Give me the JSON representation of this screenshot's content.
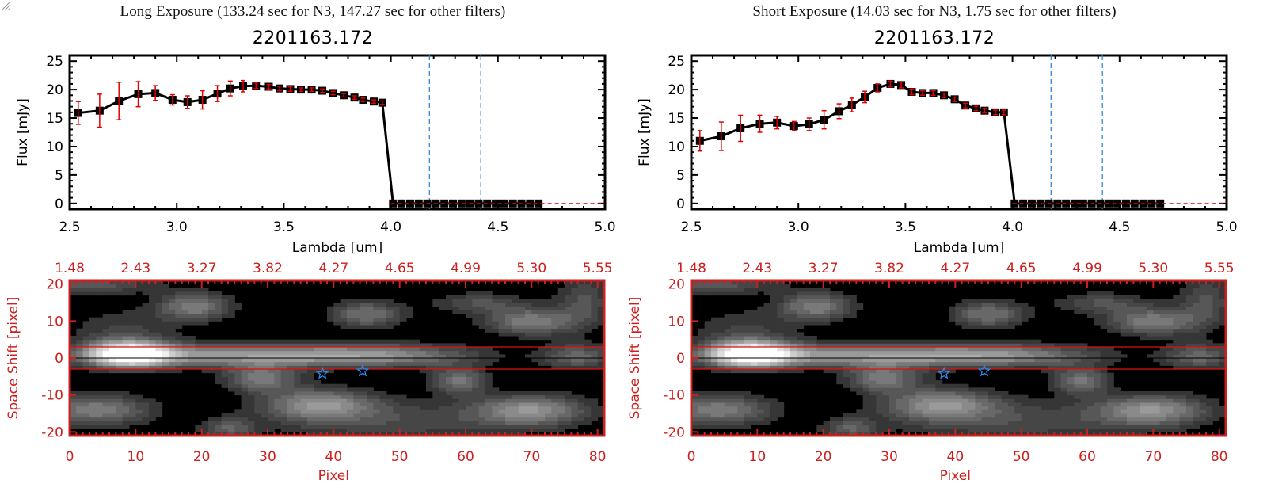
{
  "window": {
    "resize_grip_icon": "resize-grip-icon"
  },
  "chart_data": [
    {
      "id": "long-spectrum",
      "type": "line",
      "title": "Long Exposure (133.24 sec for N3, 147.27 sec for other filters)",
      "subtitle": "2201163.172",
      "xlabel": "Lambda [um]",
      "ylabel": "Flux [mJy]",
      "xlim": [
        2.5,
        5.0
      ],
      "ylim": [
        -1,
        26
      ],
      "xticks": [
        "2.5",
        "3.0",
        "3.5",
        "4.0",
        "4.5",
        "5.0"
      ],
      "xtick_values": [
        2.5,
        3.0,
        3.5,
        4.0,
        4.5,
        5.0
      ],
      "yticks": [
        "0",
        "5",
        "10",
        "15",
        "20",
        "25"
      ],
      "ytick_values": [
        0,
        5,
        10,
        15,
        20,
        25
      ],
      "vlines": [
        4.18,
        4.42
      ],
      "vline_color": "#1f7fe0",
      "hline_zero_color": "#e00000",
      "line_color": "#000000",
      "errorbar_color": "#e00000",
      "x": [
        2.54,
        2.64,
        2.73,
        2.82,
        2.9,
        2.98,
        3.05,
        3.12,
        3.19,
        3.25,
        3.31,
        3.37,
        3.43,
        3.48,
        3.53,
        3.58,
        3.63,
        3.68,
        3.73,
        3.78,
        3.83,
        3.87,
        3.92,
        3.96,
        4.01,
        4.05,
        4.09,
        4.13,
        4.17,
        4.21,
        4.25,
        4.29,
        4.33,
        4.37,
        4.41,
        4.45,
        4.49,
        4.53,
        4.57,
        4.61,
        4.65,
        4.69
      ],
      "y": [
        15.9,
        16.3,
        18.0,
        19.2,
        19.4,
        18.2,
        17.8,
        18.2,
        19.3,
        20.2,
        20.6,
        20.7,
        20.5,
        20.2,
        20.1,
        20.0,
        20.0,
        19.8,
        19.4,
        19.0,
        18.6,
        18.2,
        17.9,
        17.7,
        0,
        0,
        0,
        0,
        0,
        0,
        0,
        0,
        0,
        0,
        0,
        0,
        0,
        0,
        0,
        0,
        0,
        0
      ],
      "yerr": [
        2.0,
        2.9,
        3.3,
        2.2,
        1.3,
        0.9,
        1.1,
        1.6,
        1.4,
        1.3,
        1.0,
        0.5,
        0.4,
        0.4,
        0.4,
        0.3,
        0.3,
        0.3,
        0.3,
        0.3,
        0.3,
        0.3,
        0.3,
        0.3,
        0,
        0,
        0,
        0,
        0,
        0,
        0,
        0,
        0,
        0,
        0,
        0,
        0,
        0,
        0,
        0,
        0,
        0
      ]
    },
    {
      "id": "short-spectrum",
      "type": "line",
      "title": "Short Exposure (14.03 sec for N3, 1.75 sec for other filters)",
      "subtitle": "2201163.172",
      "xlabel": "Lambda [um]",
      "ylabel": "Flux [mJy]",
      "xlim": [
        2.5,
        5.0
      ],
      "ylim": [
        -1,
        26
      ],
      "xticks": [
        "2.5",
        "3.0",
        "3.5",
        "4.0",
        "4.5",
        "5.0"
      ],
      "xtick_values": [
        2.5,
        3.0,
        3.5,
        4.0,
        4.5,
        5.0
      ],
      "yticks": [
        "0",
        "5",
        "10",
        "15",
        "20",
        "25"
      ],
      "ytick_values": [
        0,
        5,
        10,
        15,
        20,
        25
      ],
      "vlines": [
        4.18,
        4.42
      ],
      "vline_color": "#1f7fe0",
      "hline_zero_color": "#e00000",
      "line_color": "#000000",
      "errorbar_color": "#e00000",
      "x": [
        2.54,
        2.64,
        2.73,
        2.82,
        2.9,
        2.98,
        3.05,
        3.12,
        3.19,
        3.25,
        3.31,
        3.37,
        3.43,
        3.48,
        3.53,
        3.58,
        3.63,
        3.68,
        3.73,
        3.78,
        3.83,
        3.87,
        3.92,
        3.96,
        4.01,
        4.05,
        4.09,
        4.13,
        4.17,
        4.21,
        4.25,
        4.29,
        4.33,
        4.37,
        4.41,
        4.45,
        4.49,
        4.53,
        4.57,
        4.61,
        4.65,
        4.69
      ],
      "y": [
        11.0,
        11.8,
        13.2,
        14.0,
        14.2,
        13.6,
        13.9,
        14.7,
        16.2,
        17.3,
        18.7,
        20.3,
        21.0,
        20.8,
        19.6,
        19.4,
        19.4,
        19.0,
        18.3,
        17.2,
        16.7,
        16.3,
        16.0,
        16.0,
        0,
        0,
        0,
        0,
        0,
        0,
        0,
        0,
        0,
        0,
        0,
        0,
        0,
        0,
        0,
        0,
        0,
        0
      ],
      "yerr": [
        1.8,
        2.5,
        2.3,
        1.5,
        1.1,
        0.8,
        1.1,
        1.6,
        1.3,
        1.2,
        1.0,
        0.7,
        0.5,
        0.5,
        0.5,
        0.4,
        0.4,
        0.4,
        0.4,
        0.4,
        0.4,
        0.4,
        0.4,
        0.4,
        0,
        0,
        0,
        0,
        0,
        0,
        0,
        0,
        0,
        0,
        0,
        0,
        0,
        0,
        0,
        0,
        0,
        0
      ]
    },
    {
      "id": "long-image",
      "type": "heatmap",
      "xlabel": "Pixel",
      "ylabel": "Space Shift [pixel]",
      "xlim": [
        0,
        81
      ],
      "ylim": [
        -21,
        21
      ],
      "xticks": [
        "0",
        "10",
        "20",
        "30",
        "40",
        "50",
        "60",
        "70",
        "80"
      ],
      "xtick_values": [
        0,
        10,
        20,
        30,
        40,
        50,
        60,
        70,
        80
      ],
      "yticks": [
        "20",
        "10",
        "0",
        "-10",
        "-20"
      ],
      "ytick_values": [
        20,
        10,
        0,
        -10,
        -20
      ],
      "top_ticks": [
        "1.48",
        "2.43",
        "3.27",
        "3.82",
        "4.27",
        "4.65",
        "4.99",
        "5.30",
        "5.55"
      ],
      "top_tick_label": "Lambda [um]",
      "axis_color": "#cc1f1f",
      "aperture_lines": [
        3,
        -3
      ],
      "center_line": 0,
      "star_markers": [
        {
          "x": 38.3,
          "y": -4.2
        },
        {
          "x": 44.4,
          "y": -3.5
        }
      ],
      "star_color": "#2a8cf0",
      "blobs": [
        {
          "x": 9,
          "y": 1.2,
          "sx": 4.5,
          "sy": 2.5,
          "amp": 1.0
        },
        {
          "x": 26,
          "y": 0.8,
          "sx": 16,
          "sy": 2.2,
          "amp": 0.55
        },
        {
          "x": 48,
          "y": 0.8,
          "sx": 10,
          "sy": 2.2,
          "amp": 0.35
        },
        {
          "x": 77,
          "y": 0.5,
          "sx": 4,
          "sy": 2.5,
          "amp": 0.35
        },
        {
          "x": 19,
          "y": 14,
          "sx": 4,
          "sy": 2.6,
          "amp": 0.45
        },
        {
          "x": 45,
          "y": 12,
          "sx": 4,
          "sy": 2.6,
          "amp": 0.4
        },
        {
          "x": 70,
          "y": 10,
          "sx": 5,
          "sy": 2.6,
          "amp": 0.45
        },
        {
          "x": 62,
          "y": 15,
          "sx": 5,
          "sy": 2,
          "amp": 0.25
        },
        {
          "x": 29,
          "y": -5.5,
          "sx": 4,
          "sy": 2.6,
          "amp": 0.42
        },
        {
          "x": 59,
          "y": -6,
          "sx": 3,
          "sy": 2.6,
          "amp": 0.4
        },
        {
          "x": 4,
          "y": -14,
          "sx": 6,
          "sy": 3,
          "amp": 0.45
        },
        {
          "x": 38,
          "y": -12.5,
          "sx": 6,
          "sy": 3,
          "amp": 0.5
        },
        {
          "x": 70,
          "y": -14,
          "sx": 6,
          "sy": 3,
          "amp": 0.5
        },
        {
          "x": 24,
          "y": -19,
          "sx": 3,
          "sy": 2,
          "amp": 0.3
        },
        {
          "x": 2,
          "y": 20,
          "sx": 8,
          "sy": 2,
          "amp": 0.3
        },
        {
          "x": 8,
          "y": 8,
          "sx": 6,
          "sy": 4,
          "amp": 0.18
        },
        {
          "x": 50,
          "y": -17,
          "sx": 14,
          "sy": 4,
          "amp": 0.22
        },
        {
          "x": 78,
          "y": 16,
          "sx": 3,
          "sy": 5,
          "amp": 0.25
        }
      ]
    },
    {
      "id": "short-image",
      "type": "heatmap",
      "xlabel": "Pixel",
      "ylabel": "Space Shift [pixel]",
      "xlim": [
        0,
        81
      ],
      "ylim": [
        -21,
        21
      ],
      "xticks": [
        "0",
        "10",
        "20",
        "30",
        "40",
        "50",
        "60",
        "70",
        "80"
      ],
      "xtick_values": [
        0,
        10,
        20,
        30,
        40,
        50,
        60,
        70,
        80
      ],
      "yticks": [
        "20",
        "10",
        "0",
        "-10",
        "-20"
      ],
      "ytick_values": [
        20,
        10,
        0,
        -10,
        -20
      ],
      "top_ticks": [
        "1.48",
        "2.43",
        "3.27",
        "3.82",
        "4.27",
        "4.65",
        "4.99",
        "5.30",
        "5.55"
      ],
      "top_tick_label": "Lambda [um]",
      "axis_color": "#cc1f1f",
      "aperture_lines": [
        3,
        -3
      ],
      "center_line": 0,
      "star_markers": [
        {
          "x": 38.3,
          "y": -4.2
        },
        {
          "x": 44.4,
          "y": -3.5
        }
      ],
      "star_color": "#2a8cf0",
      "blobs": [
        {
          "x": 9,
          "y": 1.2,
          "sx": 4.5,
          "sy": 2.5,
          "amp": 1.0
        },
        {
          "x": 26,
          "y": 0.8,
          "sx": 16,
          "sy": 2.2,
          "amp": 0.55
        },
        {
          "x": 48,
          "y": 0.8,
          "sx": 10,
          "sy": 2.2,
          "amp": 0.35
        },
        {
          "x": 77,
          "y": 0.5,
          "sx": 4,
          "sy": 2.5,
          "amp": 0.35
        },
        {
          "x": 19,
          "y": 14,
          "sx": 4,
          "sy": 2.6,
          "amp": 0.45
        },
        {
          "x": 45,
          "y": 12,
          "sx": 4,
          "sy": 2.6,
          "amp": 0.4
        },
        {
          "x": 70,
          "y": 10,
          "sx": 5,
          "sy": 2.6,
          "amp": 0.45
        },
        {
          "x": 62,
          "y": 15,
          "sx": 5,
          "sy": 2,
          "amp": 0.25
        },
        {
          "x": 29,
          "y": -5.5,
          "sx": 4,
          "sy": 2.6,
          "amp": 0.42
        },
        {
          "x": 59,
          "y": -6,
          "sx": 3,
          "sy": 2.6,
          "amp": 0.4
        },
        {
          "x": 4,
          "y": -14,
          "sx": 6,
          "sy": 3,
          "amp": 0.45
        },
        {
          "x": 38,
          "y": -12.5,
          "sx": 6,
          "sy": 3,
          "amp": 0.5
        },
        {
          "x": 70,
          "y": -14,
          "sx": 6,
          "sy": 3,
          "amp": 0.5
        },
        {
          "x": 24,
          "y": -19,
          "sx": 3,
          "sy": 2,
          "amp": 0.3
        },
        {
          "x": 2,
          "y": 20,
          "sx": 8,
          "sy": 2,
          "amp": 0.3
        },
        {
          "x": 8,
          "y": 8,
          "sx": 6,
          "sy": 4,
          "amp": 0.18
        },
        {
          "x": 50,
          "y": -17,
          "sx": 14,
          "sy": 4,
          "amp": 0.22
        },
        {
          "x": 78,
          "y": 16,
          "sx": 3,
          "sy": 5,
          "amp": 0.25
        }
      ]
    }
  ]
}
